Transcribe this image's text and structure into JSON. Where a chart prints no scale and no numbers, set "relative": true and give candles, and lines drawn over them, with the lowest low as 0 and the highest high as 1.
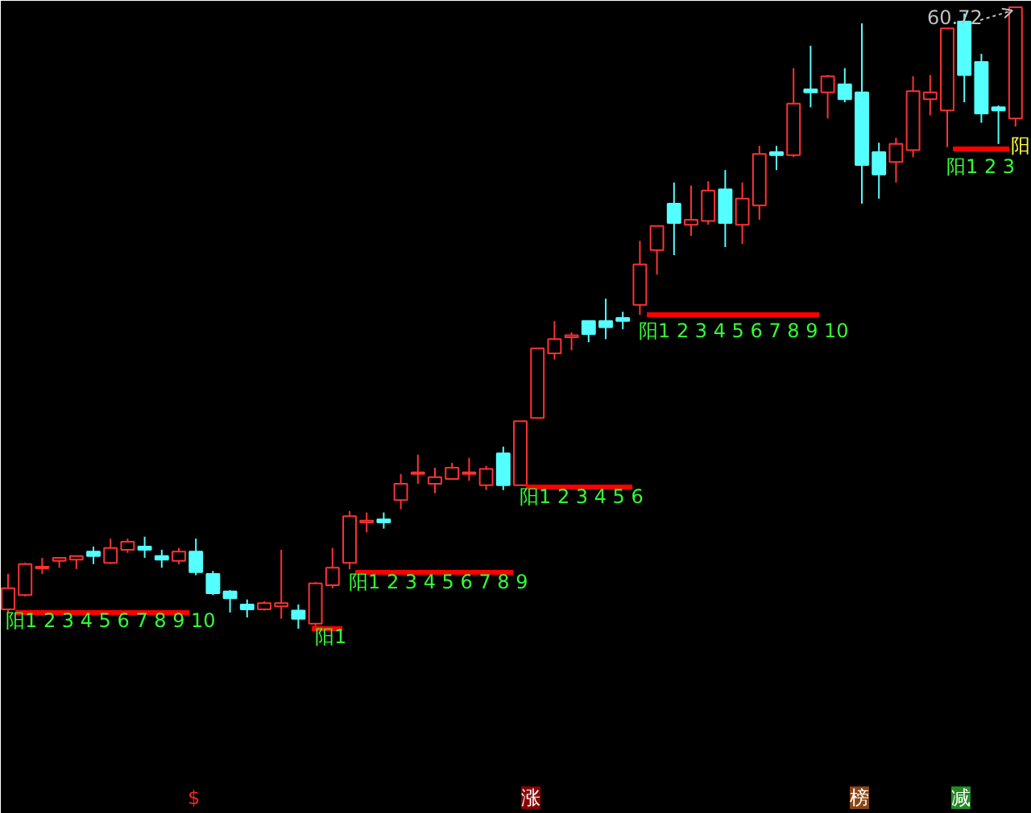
{
  "chart_data": {
    "type": "candlestick",
    "relative": true,
    "categories": [
      null,
      null,
      null,
      null,
      null,
      null,
      null,
      null,
      null,
      null,
      null,
      null,
      null,
      null,
      null,
      null,
      null,
      null,
      null,
      null,
      null,
      null,
      null,
      null,
      null,
      null,
      null,
      null,
      null,
      null,
      null,
      null,
      null,
      null,
      null,
      null,
      null,
      null,
      null,
      null,
      null,
      null,
      null,
      null,
      null,
      null,
      null,
      null,
      null,
      null,
      null,
      null,
      null,
      null,
      null,
      null,
      null,
      null,
      null,
      null
    ],
    "ohlc": [
      [
        0.031,
        0.088,
        0.026,
        0.065
      ],
      [
        0.054,
        0.106,
        0.052,
        0.104
      ],
      [
        0.097,
        0.114,
        0.088,
        0.098
      ],
      [
        0.109,
        0.114,
        0.098,
        0.114
      ],
      [
        0.111,
        0.117,
        0.096,
        0.117
      ],
      [
        0.124,
        0.132,
        0.104,
        0.117
      ],
      [
        0.106,
        0.145,
        0.104,
        0.13
      ],
      [
        0.127,
        0.145,
        0.122,
        0.14
      ],
      [
        0.132,
        0.148,
        0.114,
        0.127
      ],
      [
        0.117,
        0.127,
        0.098,
        0.111
      ],
      [
        0.109,
        0.13,
        0.104,
        0.124
      ],
      [
        0.124,
        0.145,
        0.086,
        0.091
      ],
      [
        0.088,
        0.093,
        0.054,
        0.057
      ],
      [
        0.06,
        0.062,
        0.026,
        0.049
      ],
      [
        0.039,
        0.047,
        0.018,
        0.031
      ],
      [
        0.031,
        0.044,
        0.029,
        0.041
      ],
      [
        0.036,
        0.127,
        0.016,
        0.041
      ],
      [
        0.029,
        0.039,
        0,
        0.016
      ],
      [
        0.008,
        0.075,
        0.003,
        0.073
      ],
      [
        0.07,
        0.13,
        0.065,
        0.098
      ],
      [
        0.106,
        0.189,
        0.096,
        0.181
      ],
      [
        0.171,
        0.187,
        0.155,
        0.174
      ],
      [
        0.176,
        0.187,
        0.161,
        0.171
      ],
      [
        0.207,
        0.249,
        0.192,
        0.233
      ],
      [
        0.249,
        0.28,
        0.233,
        0.251
      ],
      [
        0.233,
        0.259,
        0.218,
        0.244
      ],
      [
        0.241,
        0.267,
        0.241,
        0.259
      ],
      [
        0.249,
        0.275,
        0.238,
        0.251
      ],
      [
        0.231,
        0.262,
        0.223,
        0.257
      ],
      [
        0.282,
        0.293,
        0.223,
        0.231
      ],
      [
        0.231,
        0.334,
        0.231,
        0.334
      ],
      [
        0.339,
        0.451,
        0.339,
        0.451
      ],
      [
        0.443,
        0.495,
        0.433,
        0.466
      ],
      [
        0.469,
        0.477,
        0.448,
        0.472
      ],
      [
        0.495,
        0.495,
        0.461,
        0.474
      ],
      [
        0.495,
        0.531,
        0.466,
        0.485
      ],
      [
        0.5,
        0.51,
        0.482,
        0.495
      ],
      [
        0.521,
        0.624,
        0.505,
        0.586
      ],
      [
        0.609,
        0.648,
        0.57,
        0.648
      ],
      [
        0.684,
        0.718,
        0.601,
        0.653
      ],
      [
        0.65,
        0.713,
        0.632,
        0.658
      ],
      [
        0.656,
        0.72,
        0.65,
        0.705
      ],
      [
        0.707,
        0.738,
        0.614,
        0.653
      ],
      [
        0.65,
        0.718,
        0.619,
        0.692
      ],
      [
        0.681,
        0.777,
        0.658,
        0.764
      ],
      [
        0.767,
        0.777,
        0.738,
        0.762
      ],
      [
        0.762,
        0.902,
        0.759,
        0.845
      ],
      [
        0.868,
        0.938,
        0.839,
        0.863
      ],
      [
        0.863,
        0.891,
        0.821,
        0.889
      ],
      [
        0.876,
        0.902,
        0.847,
        0.852
      ],
      [
        0.863,
        0.974,
        0.684,
        0.746
      ],
      [
        0.767,
        0.782,
        0.692,
        0.731
      ],
      [
        0.751,
        0.79,
        0.718,
        0.78
      ],
      [
        0.77,
        0.889,
        0.759,
        0.865
      ],
      [
        0.852,
        0.891,
        0.826,
        0.863
      ],
      [
        0.834,
        0.966,
        0.775,
        0.966
      ],
      [
        0.977,
        0.99,
        0.847,
        0.891
      ],
      [
        0.912,
        0.925,
        0.814,
        0.829
      ],
      [
        0.839,
        0.842,
        0.78,
        0.834
      ],
      [
        0.821,
        1.0,
        0.808,
        1.0
      ]
    ],
    "colors": [
      "#ff3232",
      "#ff3232",
      "#ff3232",
      "#ff3232",
      "#ff3232",
      "#54ffff",
      "#ff3232",
      "#ff3232",
      "#54ffff",
      "#54ffff",
      "#ff3232",
      "#54ffff",
      "#54ffff",
      "#54ffff",
      "#54ffff",
      "#ff3232",
      "#ff3232",
      "#54ffff",
      "#ff3232",
      "#ff3232",
      "#ff3232",
      "#ff3232",
      "#54ffff",
      "#ff3232",
      "#ff3232",
      "#ff3232",
      "#ff3232",
      "#ff3232",
      "#ff3232",
      "#54ffff",
      "#ff3232",
      "#ff3232",
      "#ff3232",
      "#ff3232",
      "#54ffff",
      "#54ffff",
      "#54ffff",
      "#ff3232",
      "#ff3232",
      "#54ffff",
      "#ff3232",
      "#ff3232",
      "#54ffff",
      "#ff3232",
      "#ff3232",
      "#54ffff",
      "#ff3232",
      "#54ffff",
      "#ff3232",
      "#54ffff",
      "#54ffff",
      "#54ffff",
      "#ff3232",
      "#ff3232",
      "#ff3232",
      "#ff3232",
      "#54ffff",
      "#54ffff",
      "#54ffff",
      "#ff3232"
    ],
    "annotations": [
      "阳1 2 3 4 5 6 7 8 9 10",
      "阳1",
      "阳1 2 3 4 5 6 7 8 9",
      "阳1 2 3 4 5 6",
      "阳1 2 3 4 5 6 7 8 9 10",
      "阳1 2 3",
      "阳",
      "60.72",
      "$",
      "涨",
      "榜",
      "减"
    ]
  }
}
